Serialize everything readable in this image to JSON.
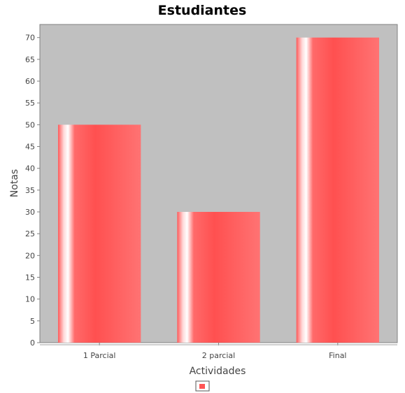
{
  "chart_data": {
    "type": "bar",
    "title": "Estudiantes",
    "xlabel": "Actividades",
    "ylabel": "Notas",
    "categories": [
      "1 Parcial",
      "2 parcial",
      "Final"
    ],
    "series": [
      {
        "values": [
          50,
          30,
          70
        ]
      }
    ],
    "ylim": [
      0,
      73
    ],
    "yticks": [
      0,
      5,
      10,
      15,
      20,
      25,
      30,
      35,
      40,
      45,
      50,
      55,
      60,
      65,
      70
    ],
    "grid": false,
    "legend": "bottom-center",
    "colors": {
      "plot_background": "#c0c0c0",
      "bar": "#ff5555",
      "bar_highlight": "#ffffff",
      "axis": "#808080"
    }
  }
}
